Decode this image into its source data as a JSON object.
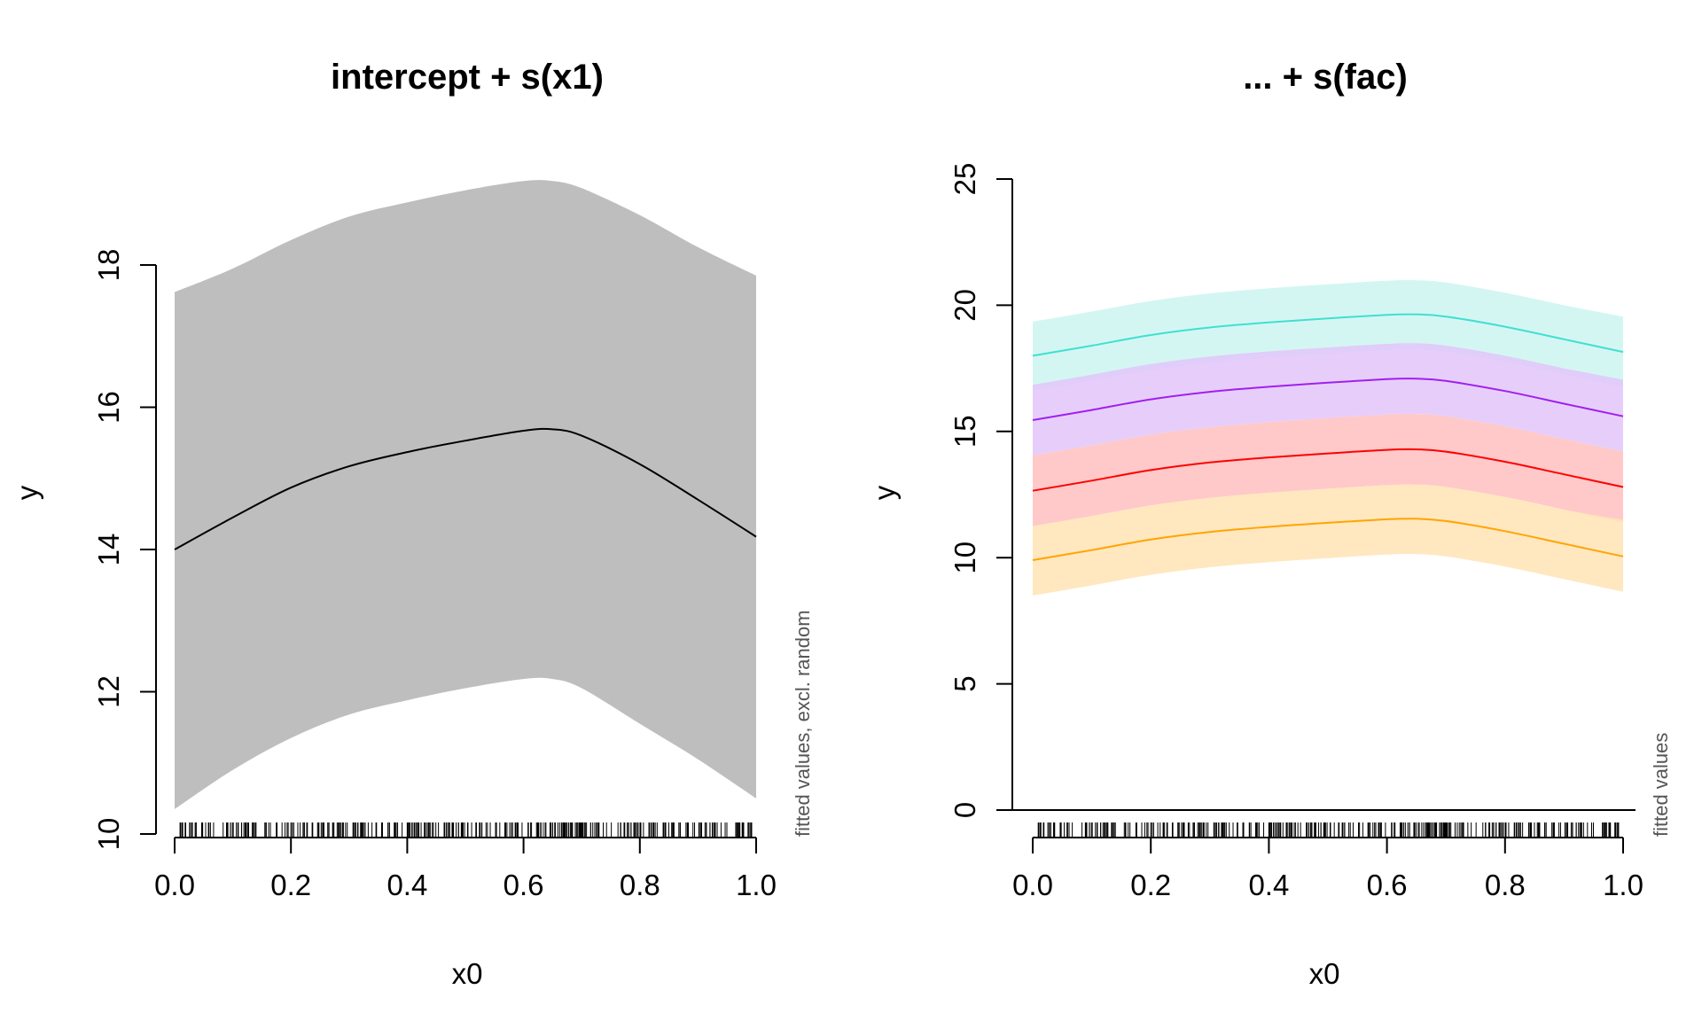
{
  "chart_data": [
    {
      "type": "line",
      "title": "intercept + s(x1)",
      "xlabel": "x0",
      "ylabel": "y",
      "side_note": "fitted values, excl. random",
      "xlim": [
        0,
        1
      ],
      "ylim": [
        10,
        18
      ],
      "xticks": [
        "0.0",
        "0.2",
        "0.4",
        "0.6",
        "0.8",
        "1.0"
      ],
      "yticks": [
        "10",
        "12",
        "14",
        "16",
        "18"
      ],
      "x": [
        0.0,
        0.1,
        0.2,
        0.3,
        0.4,
        0.5,
        0.6,
        0.65,
        0.7,
        0.8,
        0.9,
        1.0
      ],
      "series": [
        {
          "color": "#000000",
          "fill": "#bebebe",
          "values": [
            14.0,
            14.45,
            14.87,
            15.17,
            15.37,
            15.53,
            15.67,
            15.69,
            15.6,
            15.2,
            14.7,
            14.18
          ],
          "lower": [
            10.35,
            10.9,
            11.35,
            11.68,
            11.88,
            12.05,
            12.18,
            12.18,
            12.05,
            11.55,
            11.05,
            10.5
          ],
          "upper": [
            17.62,
            17.95,
            18.35,
            18.68,
            18.88,
            19.05,
            19.18,
            19.18,
            19.08,
            18.7,
            18.25,
            17.85
          ]
        }
      ],
      "rug": true,
      "grid": false
    },
    {
      "type": "line",
      "title": "... + s(fac)",
      "xlabel": "x0",
      "ylabel": "y",
      "side_note": "fitted values",
      "xlim": [
        0,
        1
      ],
      "ylim": [
        0,
        25
      ],
      "xticks": [
        "0.0",
        "0.2",
        "0.4",
        "0.6",
        "0.8",
        "1.0"
      ],
      "yticks": [
        "0",
        "5",
        "10",
        "15",
        "20",
        "25"
      ],
      "x": [
        0.0,
        0.1,
        0.2,
        0.3,
        0.4,
        0.5,
        0.6,
        0.65,
        0.7,
        0.8,
        0.9,
        1.0
      ],
      "series": [
        {
          "color": "#40e0d0",
          "fill": "#cdf5f1",
          "values": [
            18.0,
            18.4,
            18.82,
            19.12,
            19.32,
            19.48,
            19.62,
            19.64,
            19.55,
            19.15,
            18.65,
            18.15
          ],
          "lower": [
            16.6,
            17.0,
            17.42,
            17.72,
            17.92,
            18.08,
            18.22,
            18.24,
            18.15,
            17.75,
            17.25,
            16.75
          ],
          "upper": [
            19.35,
            19.75,
            20.17,
            20.47,
            20.67,
            20.83,
            20.97,
            20.99,
            20.9,
            20.5,
            20.0,
            19.55
          ]
        },
        {
          "color": "#a020f0",
          "fill": "#e3c5f9",
          "values": [
            15.45,
            15.85,
            16.27,
            16.57,
            16.77,
            16.93,
            17.07,
            17.09,
            17.0,
            16.6,
            16.1,
            15.6
          ],
          "lower": [
            14.05,
            14.45,
            14.87,
            15.17,
            15.37,
            15.53,
            15.67,
            15.69,
            15.6,
            15.2,
            14.7,
            14.2
          ],
          "upper": [
            16.85,
            17.25,
            17.67,
            17.97,
            18.17,
            18.33,
            18.47,
            18.49,
            18.4,
            18.0,
            17.5,
            17.05
          ]
        },
        {
          "color": "#ff0000",
          "fill": "#ffc0c0",
          "values": [
            12.65,
            13.05,
            13.47,
            13.77,
            13.97,
            14.13,
            14.27,
            14.29,
            14.2,
            13.8,
            13.3,
            12.8
          ],
          "lower": [
            11.25,
            11.65,
            12.07,
            12.37,
            12.57,
            12.73,
            12.87,
            12.89,
            12.8,
            12.4,
            11.9,
            11.4
          ],
          "upper": [
            14.05,
            14.45,
            14.87,
            15.17,
            15.37,
            15.53,
            15.67,
            15.69,
            15.6,
            15.2,
            14.7,
            14.2
          ]
        },
        {
          "color": "#ffa500",
          "fill": "#ffe3b5",
          "values": [
            9.9,
            10.3,
            10.72,
            11.02,
            11.22,
            11.38,
            11.52,
            11.54,
            11.45,
            11.05,
            10.55,
            10.05
          ],
          "lower": [
            8.5,
            8.9,
            9.32,
            9.62,
            9.82,
            9.98,
            10.12,
            10.14,
            10.05,
            9.65,
            9.15,
            8.65
          ],
          "upper": [
            11.25,
            11.65,
            12.07,
            12.37,
            12.57,
            12.73,
            12.87,
            12.89,
            12.8,
            12.4,
            11.9,
            11.5
          ]
        }
      ],
      "rug": true,
      "grid": false
    }
  ]
}
